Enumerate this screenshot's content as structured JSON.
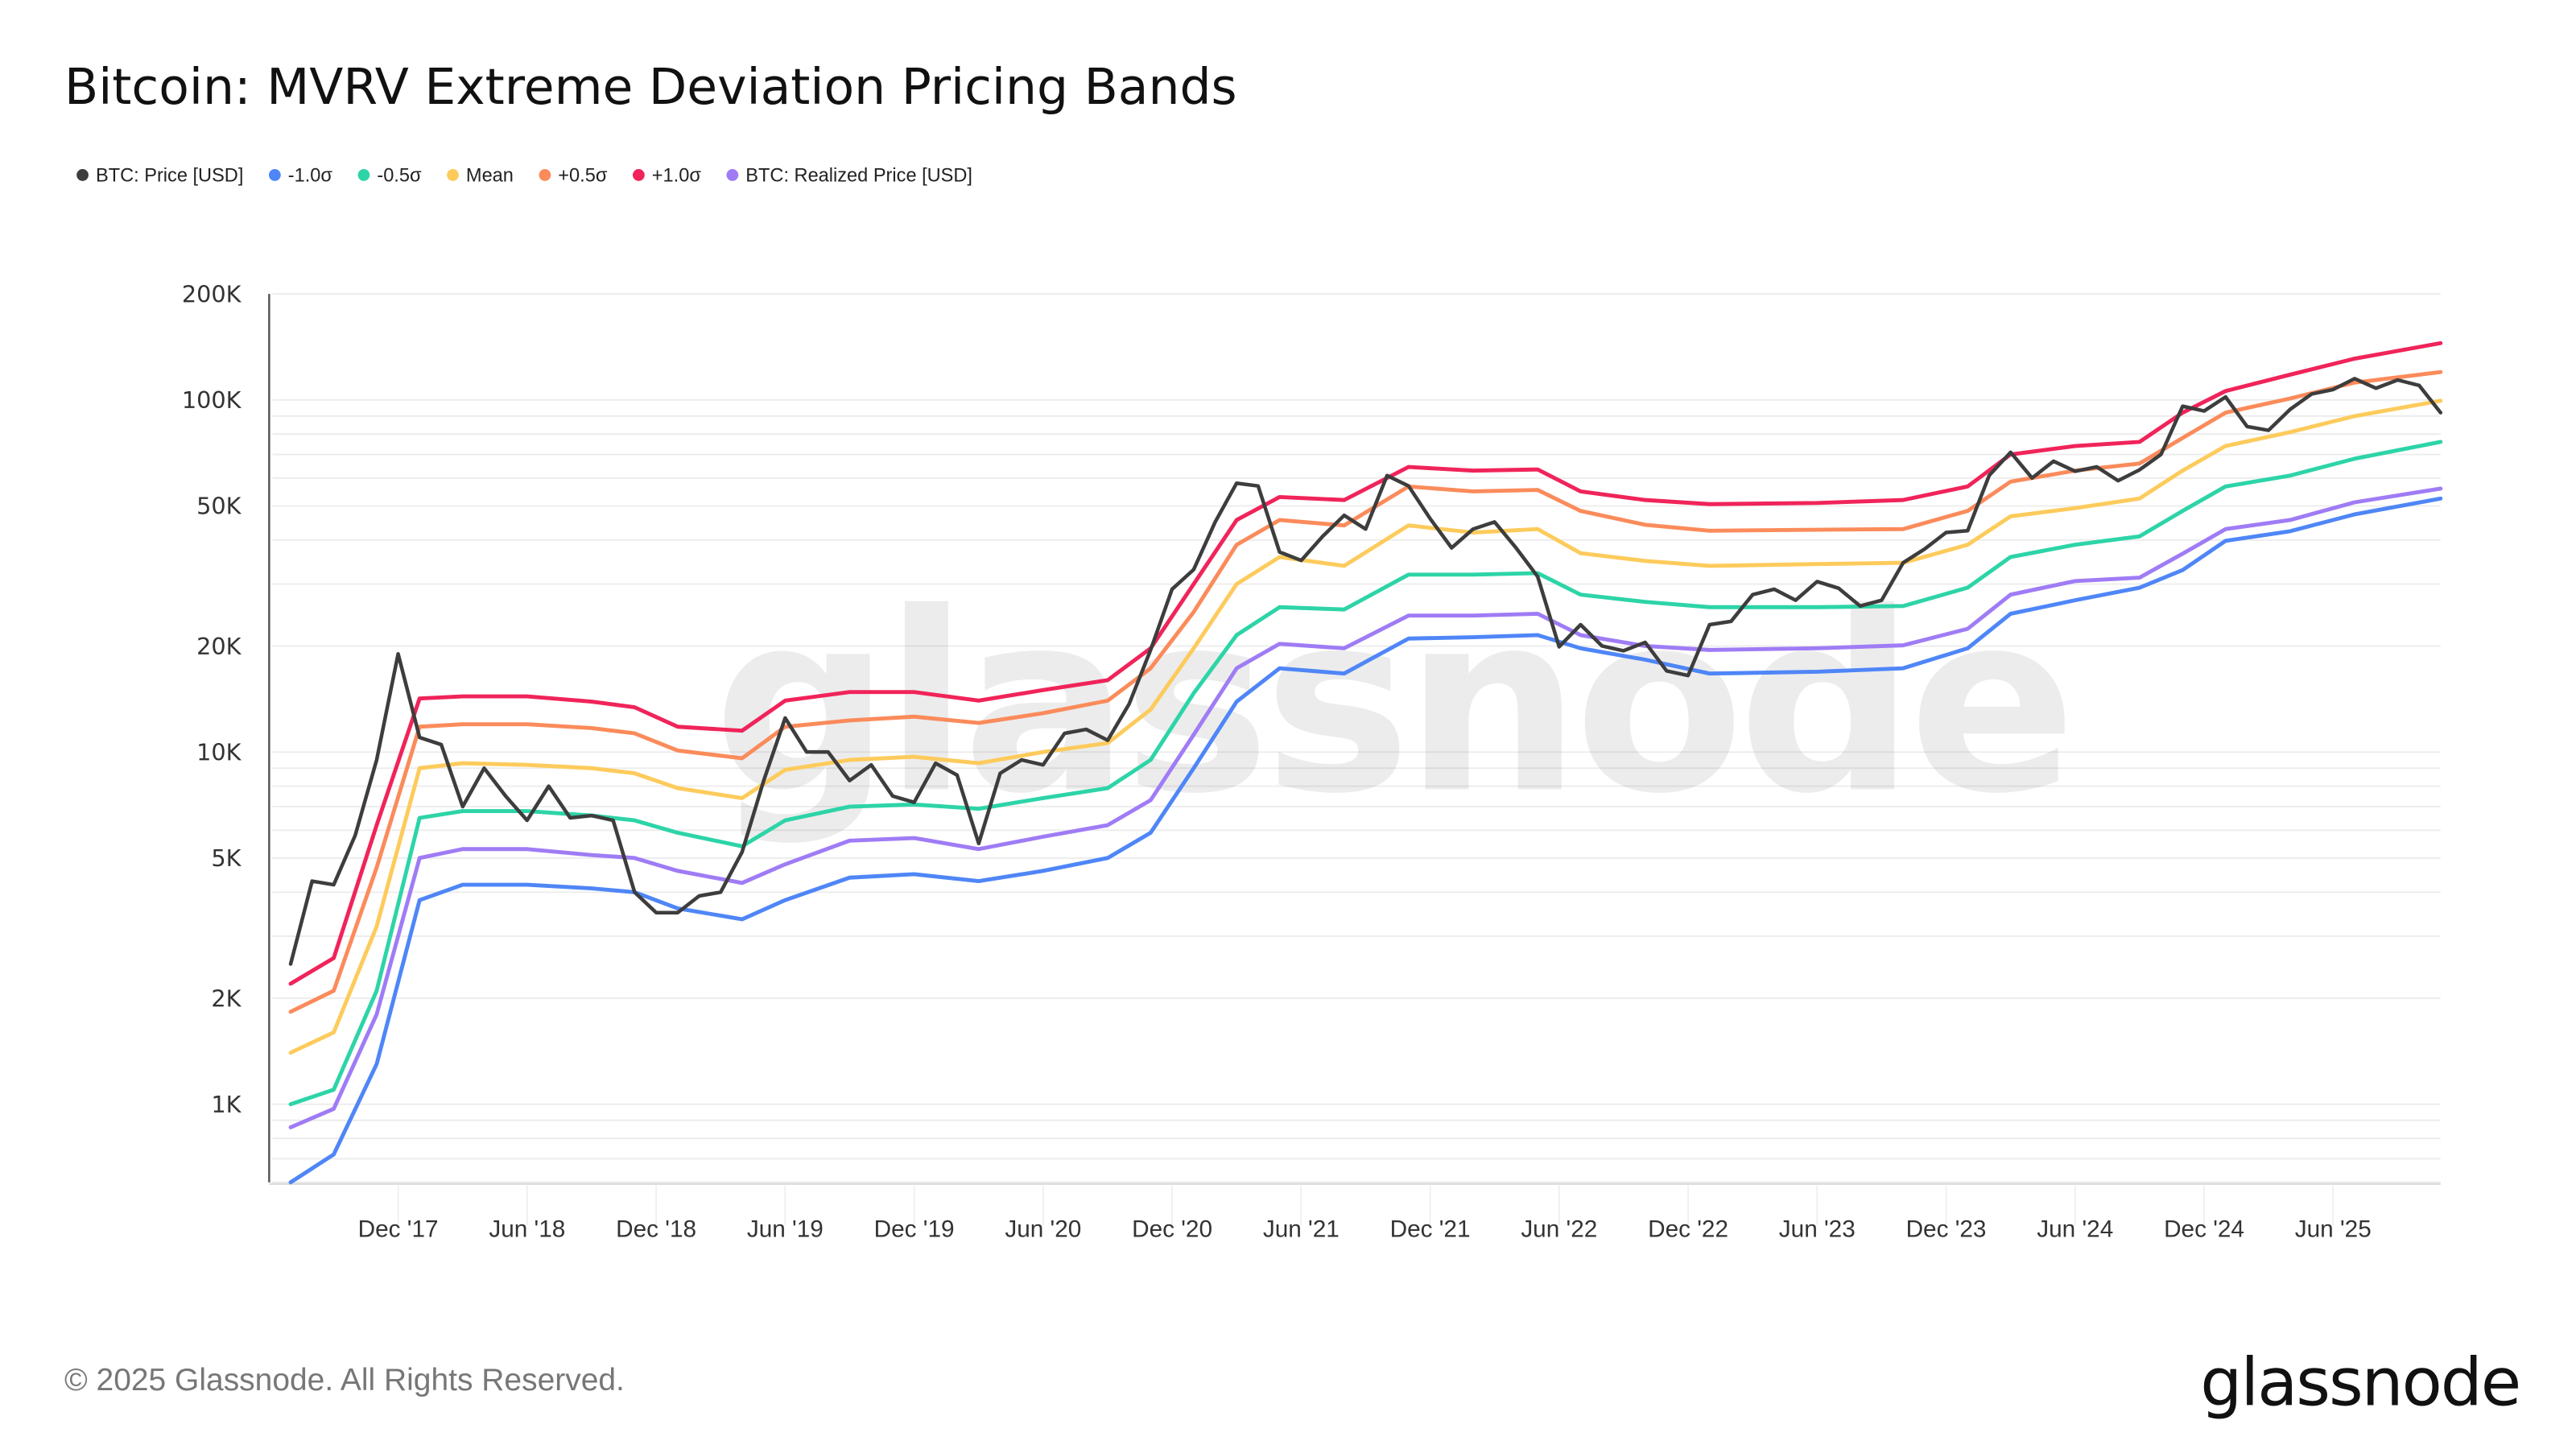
{
  "chart_data": {
    "type": "line",
    "title": "Bitcoin: MVRV Extreme Deviation Pricing Bands",
    "y_scale": "log",
    "ylim": [
      600,
      200000
    ],
    "y_ticks": [
      {
        "value": 200000,
        "label": "200K"
      },
      {
        "value": 100000,
        "label": "100K"
      },
      {
        "value": 50000,
        "label": "50K"
      },
      {
        "value": 20000,
        "label": "20K"
      },
      {
        "value": 10000,
        "label": "10K"
      },
      {
        "value": 5000,
        "label": "5K"
      },
      {
        "value": 2000,
        "label": "2K"
      },
      {
        "value": 1000,
        "label": "1K"
      }
    ],
    "x_ticks": [
      {
        "date": "2017-12",
        "label": "Dec '17"
      },
      {
        "date": "2018-06",
        "label": "Jun '18"
      },
      {
        "date": "2018-12",
        "label": "Dec '18"
      },
      {
        "date": "2019-06",
        "label": "Jun '19"
      },
      {
        "date": "2019-12",
        "label": "Dec '19"
      },
      {
        "date": "2020-06",
        "label": "Jun '20"
      },
      {
        "date": "2020-12",
        "label": "Dec '20"
      },
      {
        "date": "2021-06",
        "label": "Jun '21"
      },
      {
        "date": "2021-12",
        "label": "Dec '21"
      },
      {
        "date": "2022-06",
        "label": "Jun '22"
      },
      {
        "date": "2022-12",
        "label": "Dec '22"
      },
      {
        "date": "2023-06",
        "label": "Jun '23"
      },
      {
        "date": "2023-12",
        "label": "Dec '23"
      },
      {
        "date": "2024-06",
        "label": "Jun '24"
      },
      {
        "date": "2024-12",
        "label": "Dec '24"
      },
      {
        "date": "2025-06",
        "label": "Jun '25"
      }
    ],
    "xlim": [
      "2017-06",
      "2025-11"
    ],
    "grid": "horizontal",
    "legend_position": "top-left",
    "band_dates": [
      "2017-07",
      "2017-09",
      "2017-11",
      "2018-01",
      "2018-03",
      "2018-06",
      "2018-09",
      "2018-11",
      "2019-01",
      "2019-04",
      "2019-06",
      "2019-09",
      "2019-12",
      "2020-03",
      "2020-06",
      "2020-09",
      "2020-11",
      "2021-01",
      "2021-03",
      "2021-05",
      "2021-08",
      "2021-11",
      "2022-02",
      "2022-05",
      "2022-07",
      "2022-10",
      "2023-01",
      "2023-06",
      "2023-10",
      "2024-01",
      "2024-03",
      "2024-06",
      "2024-09",
      "2024-11",
      "2025-01",
      "2025-04",
      "2025-07",
      "2025-11"
    ],
    "price_dates": [
      "2017-07",
      "2017-08",
      "2017-09",
      "2017-10",
      "2017-11",
      "2017-12",
      "2018-01",
      "2018-02",
      "2018-03",
      "2018-04",
      "2018-05",
      "2018-06",
      "2018-07",
      "2018-08",
      "2018-09",
      "2018-10",
      "2018-11",
      "2018-12",
      "2019-01",
      "2019-02",
      "2019-03",
      "2019-04",
      "2019-05",
      "2019-06",
      "2019-07",
      "2019-08",
      "2019-09",
      "2019-10",
      "2019-11",
      "2019-12",
      "2020-01",
      "2020-02",
      "2020-03",
      "2020-04",
      "2020-05",
      "2020-06",
      "2020-07",
      "2020-08",
      "2020-09",
      "2020-10",
      "2020-11",
      "2020-12",
      "2021-01",
      "2021-02",
      "2021-03",
      "2021-04",
      "2021-05",
      "2021-06",
      "2021-07",
      "2021-08",
      "2021-09",
      "2021-10",
      "2021-11",
      "2021-12",
      "2022-01",
      "2022-02",
      "2022-03",
      "2022-04",
      "2022-05",
      "2022-06",
      "2022-07",
      "2022-08",
      "2022-09",
      "2022-10",
      "2022-11",
      "2022-12",
      "2023-01",
      "2023-02",
      "2023-03",
      "2023-04",
      "2023-05",
      "2023-06",
      "2023-07",
      "2023-08",
      "2023-09",
      "2023-10",
      "2023-11",
      "2023-12",
      "2024-01",
      "2024-02",
      "2024-03",
      "2024-04",
      "2024-05",
      "2024-06",
      "2024-07",
      "2024-08",
      "2024-09",
      "2024-10",
      "2024-11",
      "2024-12",
      "2025-01",
      "2025-02",
      "2025-03",
      "2025-04",
      "2025-05",
      "2025-06",
      "2025-07",
      "2025-08",
      "2025-09",
      "2025-10",
      "2025-11"
    ],
    "series": [
      {
        "name": "BTC: Price [USD]",
        "key": "price",
        "color": "#3d3d3d",
        "uses": "price_dates",
        "values": [
          2500,
          4300,
          4200,
          5800,
          9500,
          19000,
          11000,
          10500,
          7000,
          9000,
          7500,
          6400,
          8000,
          6500,
          6600,
          6400,
          4000,
          3500,
          3500,
          3900,
          4000,
          5200,
          8300,
          12500,
          10000,
          10000,
          8300,
          9200,
          7500,
          7200,
          9300,
          8600,
          5500,
          8700,
          9500,
          9200,
          11300,
          11600,
          10800,
          13700,
          19500,
          29000,
          33000,
          45000,
          58000,
          57000,
          37000,
          35000,
          41000,
          47000,
          43000,
          61000,
          57000,
          46000,
          38000,
          43000,
          45000,
          38000,
          31500,
          19900,
          23000,
          20000,
          19400,
          20500,
          17000,
          16500,
          23000,
          23500,
          28000,
          29000,
          27000,
          30500,
          29200,
          26000,
          27000,
          34500,
          37700,
          42000,
          42500,
          61000,
          71000,
          60000,
          67000,
          62700,
          64600,
          59000,
          63300,
          70000,
          96000,
          93000,
          102000,
          84000,
          82000,
          94000,
          104000,
          107000,
          115000,
          108000,
          114000,
          110000,
          92000
        ]
      },
      {
        "name": "-1.0σ",
        "key": "m1",
        "color": "#4f86f7",
        "uses": "band_dates",
        "values": [
          600,
          720,
          1300,
          3800,
          4200,
          4200,
          4100,
          4000,
          3600,
          3350,
          3800,
          4400,
          4500,
          4300,
          4600,
          5000,
          5900,
          9000,
          13900,
          17300,
          16700,
          21000,
          21200,
          21500,
          19700,
          18300,
          16700,
          16900,
          17300,
          19700,
          24700,
          27000,
          29300,
          32900,
          39800,
          42400,
          47300,
          52500
        ]
      },
      {
        "name": "-0.5σ",
        "key": "m05",
        "color": "#2dd4a7",
        "uses": "band_dates",
        "values": [
          1000,
          1100,
          2100,
          6500,
          6800,
          6800,
          6600,
          6400,
          5900,
          5400,
          6400,
          7000,
          7100,
          6900,
          7400,
          7900,
          9500,
          14700,
          21500,
          25800,
          25400,
          31900,
          31900,
          32200,
          28000,
          26700,
          25800,
          25800,
          26000,
          29300,
          35800,
          38800,
          41000,
          48400,
          56800,
          61000,
          68100,
          76000
        ]
      },
      {
        "name": "Mean",
        "key": "mean",
        "color": "#fdcb5c",
        "uses": "band_dates",
        "values": [
          1400,
          1600,
          3200,
          9000,
          9300,
          9200,
          9000,
          8700,
          7900,
          7400,
          8900,
          9500,
          9700,
          9300,
          10000,
          10600,
          13200,
          19700,
          30000,
          35800,
          33800,
          44000,
          42000,
          43000,
          36700,
          34900,
          33800,
          34200,
          34500,
          38800,
          46700,
          49300,
          52500,
          63000,
          74000,
          81000,
          90000,
          99500
        ]
      },
      {
        "name": "+0.5σ",
        "key": "p05",
        "color": "#fb8b5b",
        "uses": "band_dates",
        "values": [
          1830,
          2100,
          4700,
          11800,
          12000,
          12000,
          11700,
          11300,
          10100,
          9600,
          11800,
          12300,
          12600,
          12100,
          12900,
          14000,
          17300,
          25000,
          38800,
          45600,
          44000,
          56800,
          55000,
          55500,
          48400,
          44200,
          42500,
          42800,
          43000,
          48400,
          58600,
          63000,
          66000,
          78000,
          92000,
          101000,
          112000,
          120000
        ]
      },
      {
        "name": "+1.0σ",
        "key": "p1",
        "color": "#f0245a",
        "uses": "band_dates",
        "values": [
          2200,
          2600,
          6200,
          14200,
          14400,
          14400,
          13900,
          13400,
          11800,
          11500,
          14000,
          14800,
          14800,
          14000,
          15000,
          16000,
          19700,
          30000,
          45600,
          53000,
          52000,
          64500,
          63000,
          63500,
          55000,
          52000,
          50600,
          51000,
          52000,
          56800,
          70000,
          74000,
          76000,
          92000,
          106000,
          118000,
          131000,
          145000
        ]
      },
      {
        "name": "BTC: Realized Price [USD]",
        "key": "realized",
        "color": "#9f7cf5",
        "uses": "band_dates",
        "values": [
          860,
          970,
          1800,
          5000,
          5300,
          5300,
          5100,
          5000,
          4600,
          4250,
          4800,
          5600,
          5700,
          5300,
          5750,
          6200,
          7300,
          11200,
          17300,
          20300,
          19700,
          24400,
          24400,
          24700,
          21500,
          20000,
          19500,
          19700,
          20100,
          22400,
          28000,
          30600,
          31300,
          36600,
          43000,
          45600,
          51200,
          56000
        ]
      }
    ]
  },
  "legend_order": [
    "price",
    "m1",
    "m05",
    "mean",
    "p05",
    "p1",
    "realized"
  ],
  "watermark": "glassnode",
  "footer": {
    "copyright": "© 2025 Glassnode. All Rights Reserved.",
    "logo": "glassnode"
  }
}
